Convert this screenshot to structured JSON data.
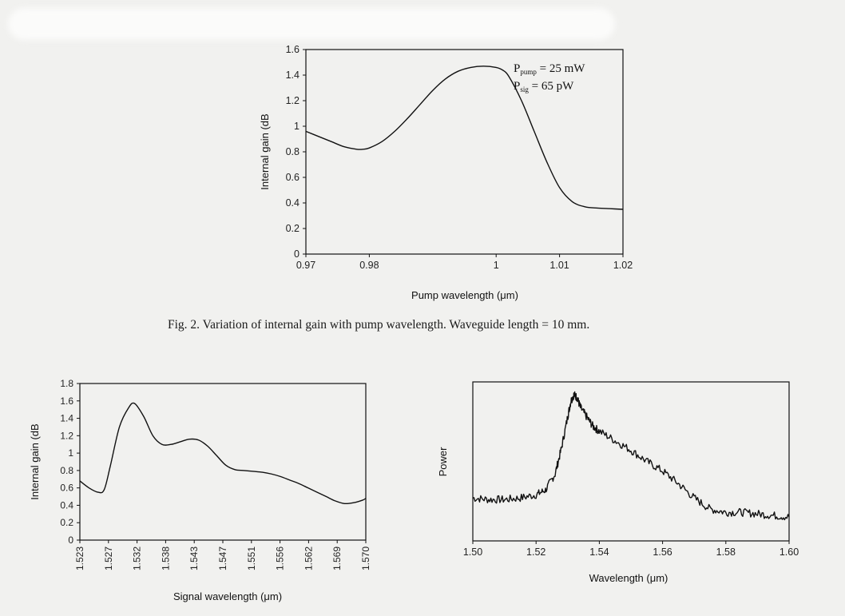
{
  "caption": "Fig. 2. Variation of internal gain with pump wavelength.  Waveguide length = 10 mm.",
  "colors": {
    "line": "#111111",
    "background": "#f1f1ef"
  },
  "chart_data": [
    {
      "type": "line",
      "xlabel": "Pump wavelength (μm)",
      "ylabel": "Internal gain (dB",
      "xlim": [
        0.97,
        1.02
      ],
      "ylim": [
        0,
        1.6
      ],
      "x_ticks": [
        "0.97",
        "0.98",
        "1",
        "1.01",
        "1.02"
      ],
      "y_ticks": [
        "0",
        "0.2",
        "0.4",
        "0.6",
        "0.8",
        "1",
        "1.2",
        "1.4",
        "1.6"
      ],
      "annotations": [
        {
          "main": "P",
          "sub": "pump",
          "rest": " = 25 mW"
        },
        {
          "main": "P",
          "sub": "sig",
          "rest": " = 65 pW"
        }
      ],
      "grid": false,
      "series": [
        {
          "x": [
            0.97,
            0.972,
            0.974,
            0.976,
            0.978,
            0.979,
            0.98,
            0.982,
            0.984,
            0.986,
            0.988,
            0.99,
            0.992,
            0.994,
            0.996,
            0.998,
            1.0,
            1.001,
            1.002,
            1.004,
            1.006,
            1.008,
            1.01,
            1.012,
            1.014,
            1.016,
            1.018,
            1.02
          ],
          "y": [
            0.96,
            0.92,
            0.88,
            0.84,
            0.82,
            0.82,
            0.83,
            0.88,
            0.96,
            1.06,
            1.17,
            1.28,
            1.37,
            1.43,
            1.46,
            1.47,
            1.46,
            1.44,
            1.39,
            1.2,
            0.96,
            0.72,
            0.52,
            0.41,
            0.37,
            0.36,
            0.355,
            0.35
          ]
        }
      ]
    },
    {
      "type": "line",
      "xlabel": "Signal wavelength (μm)",
      "ylabel": "Internal gain (dB",
      "xlim": [
        1.523,
        1.57
      ],
      "ylim": [
        0,
        1.8
      ],
      "x_ticks": [
        "1.523",
        "1.527",
        "1.532",
        "1.538",
        "1.543",
        "1.547",
        "1.551",
        "1.556",
        "1.562",
        "1.569",
        "1.570"
      ],
      "y_ticks": [
        "0",
        "0.2",
        "0.4",
        "0.6",
        "0.8",
        "1",
        "1.2",
        "1.4",
        "1.6",
        "1.8"
      ],
      "grid": false,
      "series": [
        {
          "x": [
            1.523,
            1.5245,
            1.526,
            1.527,
            1.528,
            1.5295,
            1.531,
            1.532,
            1.5335,
            1.535,
            1.5365,
            1.538,
            1.5395,
            1.541,
            1.5425,
            1.544,
            1.5455,
            1.547,
            1.5485,
            1.55,
            1.5515,
            1.553,
            1.5545,
            1.556,
            1.5575,
            1.559,
            1.5605,
            1.562,
            1.5635,
            1.565,
            1.5665,
            1.568,
            1.5695,
            1.571
          ],
          "y": [
            0.68,
            0.6,
            0.55,
            0.58,
            0.85,
            1.3,
            1.52,
            1.57,
            1.42,
            1.2,
            1.1,
            1.1,
            1.13,
            1.16,
            1.15,
            1.08,
            0.97,
            0.86,
            0.81,
            0.8,
            0.79,
            0.78,
            0.76,
            0.73,
            0.69,
            0.65,
            0.6,
            0.55,
            0.5,
            0.45,
            0.42,
            0.43,
            0.46,
            0.48
          ]
        }
      ]
    },
    {
      "type": "line",
      "xlabel": "Wavelength (μm)",
      "ylabel": "Power",
      "xlim": [
        1.5,
        1.6
      ],
      "ylim": [
        0,
        1
      ],
      "x_ticks": [
        "1.50",
        "1.52",
        "1.54",
        "1.56",
        "1.58",
        "1.60"
      ],
      "y_ticks": [],
      "grid": false,
      "noisy": true,
      "series": [
        {
          "x": [
            1.5,
            1.505,
            1.51,
            1.515,
            1.52,
            1.523,
            1.526,
            1.528,
            1.53,
            1.531,
            1.532,
            1.533,
            1.534,
            1.536,
            1.538,
            1.54,
            1.545,
            1.55,
            1.555,
            1.56,
            1.565,
            1.57,
            1.575,
            1.58,
            1.585,
            1.59,
            1.595,
            1.6
          ],
          "y": [
            0.27,
            0.26,
            0.26,
            0.27,
            0.29,
            0.32,
            0.42,
            0.58,
            0.78,
            0.88,
            0.92,
            0.9,
            0.84,
            0.78,
            0.72,
            0.69,
            0.63,
            0.57,
            0.5,
            0.44,
            0.36,
            0.27,
            0.2,
            0.18,
            0.18,
            0.17,
            0.16,
            0.15
          ]
        }
      ]
    }
  ]
}
